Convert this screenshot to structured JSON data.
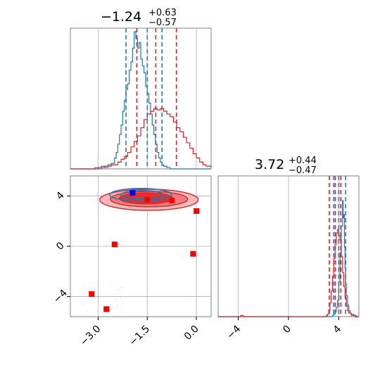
{
  "chart_data": {
    "type": "corner",
    "colors": {
      "blue": "#1f77b4",
      "red": "#d62728",
      "marker_blue": "#0000ff",
      "marker_red": "#ff0000"
    },
    "panels": {
      "hist_x": {
        "type": "histogram",
        "title": {
          "value": "−1.24",
          "upper": "+0.63",
          "lower": "−0.57"
        },
        "xlim": [
          -3.85,
          0.45
        ],
        "blue_quantiles": [
          -2.15,
          -1.5,
          -1.05
        ],
        "red_quantiles": [
          -1.82,
          -1.24,
          -0.61
        ],
        "blue_series": [
          [
            -3.85,
            0
          ],
          [
            -3.2,
            0
          ],
          [
            -3.1,
            1
          ],
          [
            -3.0,
            0
          ],
          [
            -2.9,
            2
          ],
          [
            -2.8,
            1
          ],
          [
            -2.7,
            3
          ],
          [
            -2.6,
            4
          ],
          [
            -2.5,
            8
          ],
          [
            -2.45,
            12
          ],
          [
            -2.4,
            18
          ],
          [
            -2.35,
            25
          ],
          [
            -2.3,
            32
          ],
          [
            -2.25,
            42
          ],
          [
            -2.2,
            50
          ],
          [
            -2.15,
            58
          ],
          [
            -2.1,
            62
          ],
          [
            -2.05,
            72
          ],
          [
            -2.0,
            78
          ],
          [
            -1.95,
            88
          ],
          [
            -1.9,
            100
          ],
          [
            -1.85,
            95
          ],
          [
            -1.8,
            88
          ],
          [
            -1.75,
            92
          ],
          [
            -1.7,
            80
          ],
          [
            -1.65,
            75
          ],
          [
            -1.6,
            70
          ],
          [
            -1.55,
            60
          ],
          [
            -1.5,
            55
          ],
          [
            -1.45,
            48
          ],
          [
            -1.4,
            40
          ],
          [
            -1.35,
            32
          ],
          [
            -1.3,
            25
          ],
          [
            -1.25,
            18
          ],
          [
            -1.2,
            12
          ],
          [
            -1.15,
            8
          ],
          [
            -1.1,
            5
          ],
          [
            -1.05,
            3
          ],
          [
            -1.0,
            2
          ],
          [
            -0.9,
            1
          ],
          [
            -0.8,
            0
          ],
          [
            0.45,
            0
          ]
        ],
        "red_series": [
          [
            -3.85,
            0
          ],
          [
            -3.2,
            0
          ],
          [
            -3.0,
            1
          ],
          [
            -2.8,
            2
          ],
          [
            -2.6,
            3
          ],
          [
            -2.4,
            5
          ],
          [
            -2.3,
            7
          ],
          [
            -2.2,
            9
          ],
          [
            -2.1,
            12
          ],
          [
            -2.0,
            16
          ],
          [
            -1.9,
            20
          ],
          [
            -1.8,
            24
          ],
          [
            -1.7,
            30
          ],
          [
            -1.6,
            36
          ],
          [
            -1.5,
            40
          ],
          [
            -1.4,
            42
          ],
          [
            -1.3,
            44
          ],
          [
            -1.2,
            43
          ],
          [
            -1.1,
            44
          ],
          [
            -1.0,
            42
          ],
          [
            -0.9,
            40
          ],
          [
            -0.8,
            38
          ],
          [
            -0.7,
            34
          ],
          [
            -0.6,
            30
          ],
          [
            -0.5,
            27
          ],
          [
            -0.4,
            23
          ],
          [
            -0.3,
            19
          ],
          [
            -0.2,
            15
          ],
          [
            -0.1,
            11
          ],
          [
            0.0,
            8
          ],
          [
            0.1,
            5
          ],
          [
            0.2,
            3
          ],
          [
            0.3,
            2
          ],
          [
            0.45,
            1
          ]
        ]
      },
      "scatter_2d": {
        "type": "scatter",
        "xlim": [
          -3.85,
          0.45
        ],
        "ylim": [
          -5.6,
          5.6
        ],
        "xticks": [
          -3.0,
          -1.5,
          0.0
        ],
        "xticklabels": [
          "−3.0",
          "−1.5",
          "0.0"
        ],
        "yticks": [
          -4,
          0,
          4
        ],
        "yticklabels": [
          "−4",
          "0",
          "4"
        ],
        "blue_marker": [
          -1.95,
          4.25
        ],
        "red_markers": [
          [
            0.0,
            2.8
          ],
          [
            -2.5,
            0.15
          ],
          [
            -0.1,
            -0.6
          ],
          [
            -3.2,
            -3.8
          ],
          [
            -2.75,
            -5.0
          ],
          [
            -1.5,
            3.7
          ],
          [
            -0.75,
            3.65
          ]
        ],
        "red_contour_center": [
          -1.45,
          3.7
        ],
        "blue_contour_center": [
          -1.7,
          4.1
        ]
      },
      "hist_y": {
        "type": "histogram",
        "title": {
          "value": "3.72",
          "upper": "+0.44",
          "lower": "−0.47"
        },
        "xlim": [
          -5.6,
          5.6
        ],
        "xticks": [
          -4,
          0,
          4
        ],
        "xticklabels": [
          "−4",
          "0",
          "4"
        ],
        "blue_quantiles": [
          3.6,
          4.0,
          4.55
        ],
        "red_quantiles": [
          3.25,
          3.72,
          4.16
        ],
        "blue_series": [
          [
            -5.6,
            0
          ],
          [
            3.3,
            0
          ],
          [
            3.5,
            1
          ],
          [
            3.6,
            2
          ],
          [
            3.7,
            4
          ],
          [
            3.8,
            8
          ],
          [
            3.9,
            14
          ],
          [
            4.0,
            30
          ],
          [
            4.1,
            55
          ],
          [
            4.2,
            78
          ],
          [
            4.3,
            100
          ],
          [
            4.35,
            85
          ],
          [
            4.4,
            88
          ],
          [
            4.45,
            60
          ],
          [
            4.5,
            42
          ],
          [
            4.55,
            28
          ],
          [
            4.6,
            18
          ],
          [
            4.7,
            10
          ],
          [
            4.8,
            5
          ],
          [
            4.9,
            3
          ],
          [
            5.0,
            2
          ],
          [
            5.2,
            1
          ],
          [
            5.4,
            0
          ],
          [
            5.6,
            0
          ]
        ],
        "red_series": [
          [
            -5.6,
            0
          ],
          [
            -4.0,
            0
          ],
          [
            -3.8,
            1
          ],
          [
            -3.6,
            0
          ],
          [
            3.0,
            1
          ],
          [
            3.1,
            2
          ],
          [
            3.2,
            6
          ],
          [
            3.3,
            12
          ],
          [
            3.4,
            22
          ],
          [
            3.5,
            35
          ],
          [
            3.6,
            50
          ],
          [
            3.7,
            62
          ],
          [
            3.8,
            72
          ],
          [
            3.9,
            75
          ],
          [
            4.0,
            70
          ],
          [
            4.1,
            66
          ],
          [
            4.2,
            52
          ],
          [
            4.3,
            38
          ],
          [
            4.4,
            26
          ],
          [
            4.5,
            16
          ],
          [
            4.6,
            9
          ],
          [
            4.7,
            5
          ],
          [
            4.8,
            3
          ],
          [
            5.0,
            1
          ],
          [
            5.3,
            0
          ],
          [
            5.6,
            0
          ]
        ]
      }
    }
  }
}
